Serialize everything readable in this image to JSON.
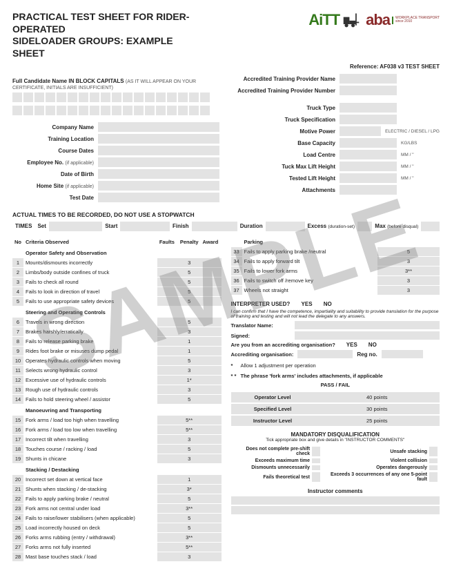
{
  "watermark": "SAMPLE",
  "title_l1": "PRACTICAL TEST SHEET FOR RIDER-OPERATED",
  "title_l2": "SIDELOADER GROUPS: EXAMPLE SHEET",
  "logos": {
    "aitt": "AiTT",
    "aba": "aba",
    "aba_sub1": "WORKPLACE TRANSPORT",
    "aba_sub2": "since 2010"
  },
  "reference": "Reference: AF038 v3 TEST SHEET",
  "candidate_label": "Full Candidate Name IN BLOCK CAPITALS",
  "candidate_sub": "(AS IT WILL APPEAR ON YOUR CERTIFICATE, INITIALS ARE INSUFFICIENT)",
  "left_fields": [
    "Company Name",
    "Training Location",
    "Course Dates",
    "Employee No. (if applicable)",
    "Date of Birth",
    "Home Site (if applicable)",
    "Test Date"
  ],
  "right_fields": [
    {
      "l": "Accredited Training Provider Name",
      "u": ""
    },
    {
      "l": "Accredited Training Provider Number",
      "u": ""
    },
    {
      "l": "Truck Type",
      "u": ""
    },
    {
      "l": "Truck Specification",
      "u": ""
    },
    {
      "l": "Motive Power",
      "u": "ELECTRIC / DIESEL / LPG"
    },
    {
      "l": "Base Capacity",
      "u": "KG/LBS"
    },
    {
      "l": "Load Centre",
      "u": "MM / \""
    },
    {
      "l": "Tuck Max Lift Height",
      "u": "MM / \""
    },
    {
      "l": "Tested Lift Height",
      "u": "MM / \""
    },
    {
      "l": "Attachments",
      "u": ""
    }
  ],
  "times_head": "ACTUAL TIMES TO BE RECORDED, DO NOT USE A STOPWATCH",
  "times_label": "TIMES",
  "times_cols": [
    "Set",
    "Start",
    "Finish",
    "Duration",
    "Excess (duration-set)",
    "Max (before disqual)"
  ],
  "crit_head": {
    "no": "No",
    "criteria": "Criteria Observed",
    "faults": "Faults",
    "penalty": "Penalty",
    "award": "Award"
  },
  "crit_left": [
    {
      "sub": "Operator Safety and Observation"
    },
    {
      "n": 1,
      "t": "Mounts/dismounts incorrectly",
      "p": "3"
    },
    {
      "n": 2,
      "t": "Limbs/body outside confines of truck",
      "p": "5"
    },
    {
      "n": 3,
      "t": "Fails to check all round",
      "p": "5"
    },
    {
      "n": 4,
      "t": "Fails to look in direction of travel",
      "p": "5"
    },
    {
      "n": 5,
      "t": "Fails to use appropriate safety devices",
      "p": "5"
    },
    {
      "sub": "Steering and Operating Controls"
    },
    {
      "n": 6,
      "t": "Travels in wrong direction",
      "p": "5"
    },
    {
      "n": 7,
      "t": "Brakes harshly/erratically",
      "p": "3"
    },
    {
      "n": 8,
      "t": "Fails to release parking brake",
      "p": "1"
    },
    {
      "n": 9,
      "t": "Rides foot brake or misuses dump pedal",
      "p": "1"
    },
    {
      "n": 10,
      "t": "Operates hydraulic controls when moving",
      "p": "5"
    },
    {
      "n": 11,
      "t": "Selects wrong hydraulic control",
      "p": "3"
    },
    {
      "n": 12,
      "t": "Excessive use of hydraulic controls",
      "p": "1*"
    },
    {
      "n": 13,
      "t": "Rough use of hydraulic controls",
      "p": "3"
    },
    {
      "n": 14,
      "t": "Fails to hold steering wheel / assistor",
      "p": "5"
    },
    {
      "sub": "Manoeuvring and Transporting"
    },
    {
      "n": 15,
      "t": "Fork arms / load too high when travelling",
      "p": "5**"
    },
    {
      "n": 16,
      "t": "Fork arms / load too low when travelling",
      "p": "5**"
    },
    {
      "n": 17,
      "t": "Incorrect tilt when travelling",
      "p": "3"
    },
    {
      "n": 18,
      "t": "Touches course / racking / load",
      "p": "5"
    },
    {
      "n": 19,
      "t": "Shunts in chicane",
      "p": "3"
    },
    {
      "sub": "Stacking / Destacking"
    },
    {
      "n": 20,
      "t": "Incorrect set down at vertical face",
      "p": "1"
    },
    {
      "n": 21,
      "t": "Shunts when stacking / de-stacking",
      "p": "3*"
    },
    {
      "n": 22,
      "t": "Fails to apply parking brake / neutral",
      "p": "5"
    },
    {
      "n": 23,
      "t": "Fork arms not central under load",
      "p": "3**"
    },
    {
      "n": 24,
      "t": "Fails to raise/lower stabilisers (when applicable)",
      "p": "5"
    },
    {
      "n": 25,
      "t": "Load incorrectly housed on deck",
      "p": "5"
    },
    {
      "n": 26,
      "t": "Forks arms rubbing (entry / withdrawal)",
      "p": "3**"
    },
    {
      "n": 27,
      "t": "Forks arms not fully inserted",
      "p": "5**"
    },
    {
      "n": 28,
      "t": "Mast base touches stack / load",
      "p": "3"
    }
  ],
  "parking_head": "Parking",
  "crit_right": [
    {
      "n": 33,
      "t": "Fails to apply parking brake /neutral",
      "p": "5"
    },
    {
      "n": 34,
      "t": "Fails to apply forward tilt",
      "p": "3"
    },
    {
      "n": 35,
      "t": "Fails to lower fork arms",
      "p": "3**"
    },
    {
      "n": 36,
      "t": "Fails to switch off /remove key",
      "p": "3"
    },
    {
      "n": 37,
      "t": "Wheels not straight",
      "p": "3"
    }
  ],
  "interp": {
    "hd": "INTERPRETER USED?",
    "yes": "YES",
    "no": "NO",
    "note": "I can confirm that I have the competence, impartiality and suitability to provide translation for the purpose of training and testing and will not lead the delegate to any answers.",
    "tname": "Translator Name:",
    "signed": "Signed:",
    "accq": "Are you from an accrediting organisation?",
    "accorg": "Accrediting organisation:",
    "regno": "Reg no."
  },
  "star1": "Allow 1 adjustment per operation",
  "star2": "The phrase 'fork arms' includes attachments, if applicable",
  "passfail": "PASS / FAIL",
  "levels": [
    {
      "l": "Operator Level",
      "p": "40 points"
    },
    {
      "l": "Specified Level",
      "p": "30 points"
    },
    {
      "l": "Instructor Level",
      "p": "25 points"
    }
  ],
  "mdq": {
    "hd": "MANDATORY DISQUALIFICATION",
    "sub": "Tick appropriate box and give details in \"INSTRUCTOR COMMENTS\""
  },
  "dq": [
    [
      "Does not complete pre-shift check",
      "Unsafe stacking"
    ],
    [
      "Exceeds maximum time",
      "Violent collision"
    ],
    [
      "Dismounts unnecessarily",
      "Operates dangerously"
    ],
    [
      "Fails theoretical test",
      "Exceeds 3 occurrences of any one 5-point fault"
    ]
  ],
  "icomm": "Instructor comments"
}
